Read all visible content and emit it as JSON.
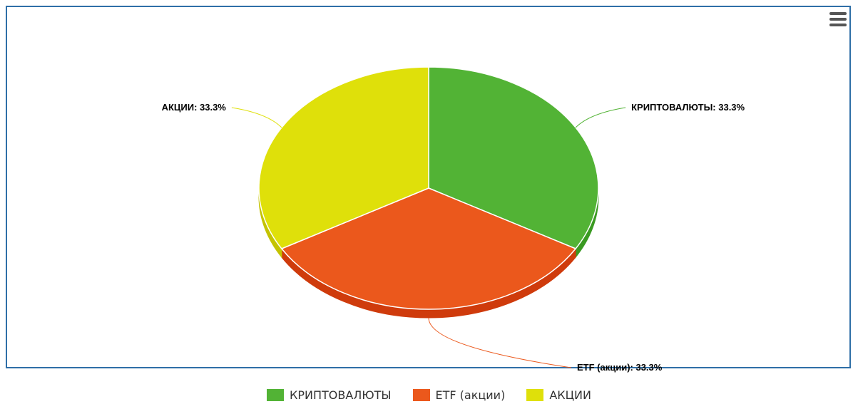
{
  "chart_data": {
    "type": "pie",
    "title": "",
    "style": "3d",
    "slices": [
      {
        "name": "КРИПТОВАЛЮТЫ",
        "value": 33.3,
        "color": "#52b335",
        "side_color": "#3a9a22",
        "label": "КРИПТОВАЛЮТЫ: 33.3%"
      },
      {
        "name": "ETF (акции)",
        "value": 33.3,
        "color": "#eb581c",
        "side_color": "#cf3b0c",
        "label": "ETF (акции): 33.3%"
      },
      {
        "name": "АКЦИИ",
        "value": 33.3,
        "color": "#dfe00a",
        "side_color": "#c4c300",
        "label": "АКЦИИ: 33.3%"
      }
    ],
    "legend_position": "bottom"
  },
  "legend": {
    "items": [
      {
        "label": "КРИПТОВАЛЮТЫ",
        "color": "#52b335"
      },
      {
        "label": "ETF (акции)",
        "color": "#eb581c"
      },
      {
        "label": "АКЦИИ",
        "color": "#dfe00a"
      }
    ]
  },
  "menu": {
    "icon": "hamburger-menu-icon"
  },
  "colors": {
    "frame_border": "#2f6fa7"
  }
}
